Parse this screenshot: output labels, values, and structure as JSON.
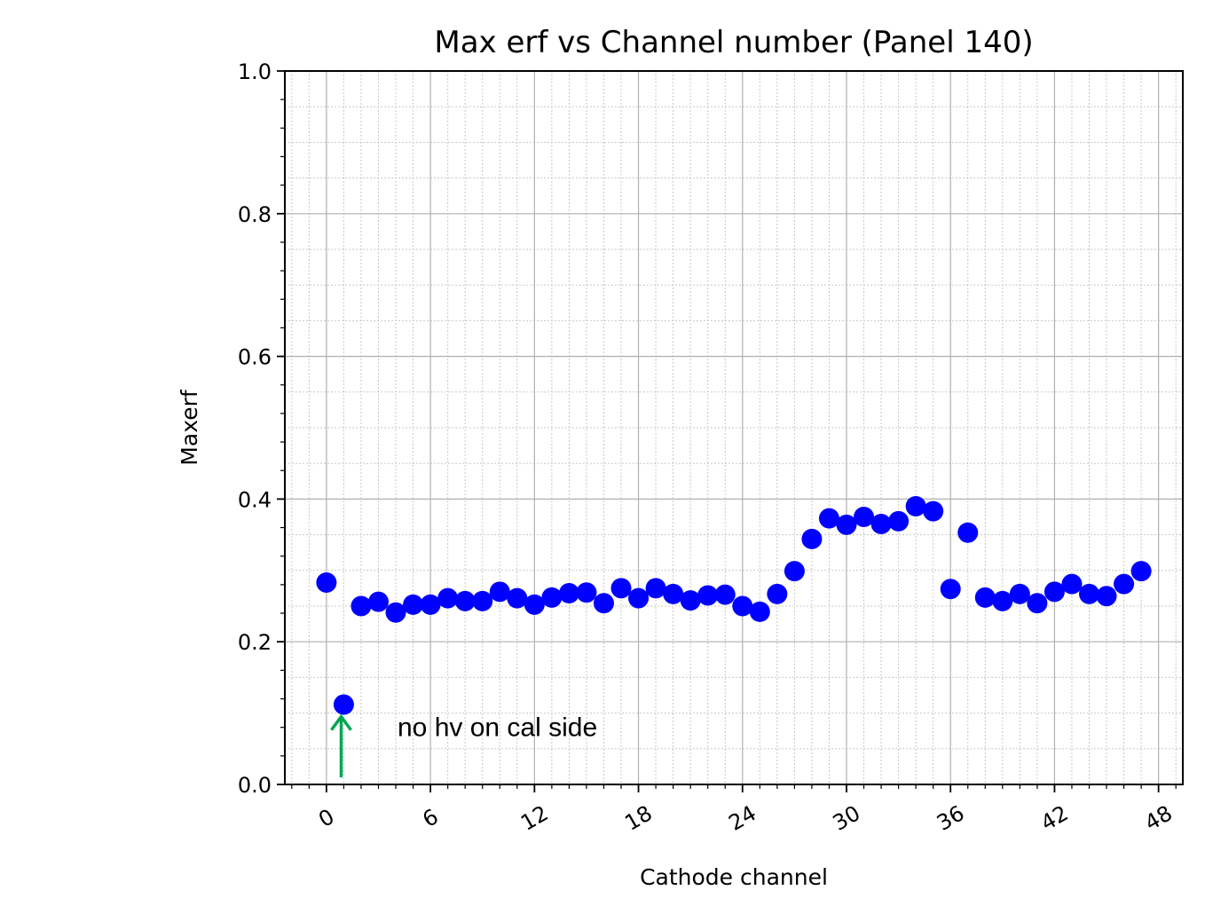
{
  "chart_data": {
    "type": "scatter",
    "title": "Max erf vs Channel number (Panel 140)",
    "xlabel": "Cathode channel",
    "ylabel": "Maxerf",
    "xlim": [
      -2.4,
      49.4
    ],
    "ylim": [
      0.0,
      1.0
    ],
    "xticks": [
      0,
      6,
      12,
      18,
      24,
      30,
      36,
      42,
      48
    ],
    "xtick_labels": [
      "0",
      "6",
      "12",
      "18",
      "24",
      "30",
      "36",
      "42",
      "48"
    ],
    "yticks": [
      0.0,
      0.2,
      0.4,
      0.6,
      0.8,
      1.0
    ],
    "ytick_labels": [
      "0.0",
      "0.2",
      "0.4",
      "0.6",
      "0.8",
      "1.0"
    ],
    "xtick_rotation_deg": 30,
    "grid": "major and minor",
    "marker_color": "#0000ff",
    "series": [
      {
        "x": [
          0,
          1,
          2,
          3,
          4,
          5,
          6,
          7,
          8,
          9,
          10,
          11,
          12,
          13,
          14,
          15,
          16,
          17,
          18,
          19,
          20,
          21,
          22,
          23,
          24,
          25,
          26,
          27,
          28,
          29,
          30,
          31,
          32,
          33,
          34,
          35,
          36,
          37,
          38,
          39,
          40,
          41,
          42,
          43,
          44,
          45,
          46,
          47
        ],
        "y": [
          0.283,
          0.112,
          0.25,
          0.256,
          0.241,
          0.252,
          0.252,
          0.261,
          0.257,
          0.257,
          0.27,
          0.261,
          0.252,
          0.262,
          0.268,
          0.269,
          0.254,
          0.275,
          0.261,
          0.275,
          0.267,
          0.258,
          0.265,
          0.266,
          0.25,
          0.242,
          0.267,
          0.299,
          0.344,
          0.373,
          0.364,
          0.375,
          0.365,
          0.369,
          0.39,
          0.383,
          0.274,
          0.353,
          0.262,
          0.257,
          0.267,
          0.254,
          0.27,
          0.281,
          0.267,
          0.264,
          0.281,
          0.299
        ]
      }
    ],
    "annotations": [
      {
        "text": "no hv on cal side",
        "x": 4.1,
        "y": 0.08
      }
    ],
    "arrow": {
      "from": [
        0.85,
        0.01
      ],
      "to": [
        0.85,
        0.095
      ],
      "color": "#00a651"
    }
  }
}
